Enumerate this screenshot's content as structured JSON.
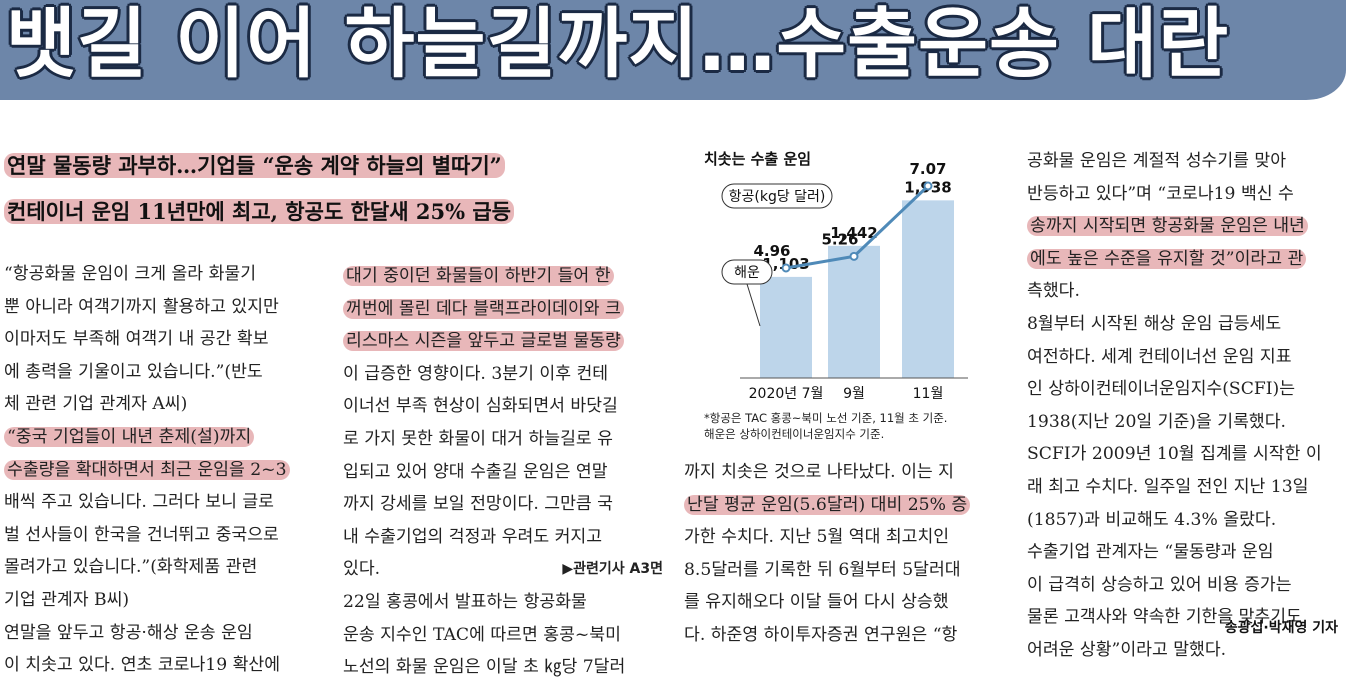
{
  "headline": "뱃길 이어 하늘길까지…수출운송 대란",
  "subheads": [
    "연말 물동량 과부하…기업들 “운송 계약 하늘의 별따기”",
    "컨테이너 운임 11년만에 최고, 항공도 한달새 25% 급등"
  ],
  "col1": [
    "  “항공화물 운임이 크게 올라 화물기",
    "뿐 아니라 여객기까지 활용하고 있지만",
    "이마저도 부족해 여객기 내 공간 확보",
    "에 총력을 기울이고 있습니다.”(반도",
    "체 관련 기업 관계자 A씨)",
    "  “중국 기업들이 내년 춘제(설)까지",
    "수출량을 확대하면서 최근 운임을 2~3",
    "배씩 주고 있습니다. 그러다 보니 글로",
    "벌 선사들이 한국을 건너뛰고 중국으로",
    "몰려가고 있습니다.”(화학제품 관련",
    "기업 관계자 B씨)",
    "  연말을 앞두고 항공·해상 운송 운임",
    "이 치솟고 있다. 연초 코로나19 확산에"
  ],
  "col2": [
    "대기 중이던 화물들이 하반기 들어 한",
    "꺼번에 몰린 데다 블랙프라이데이와 크",
    "리스마스 시즌을 앞두고 글로벌 물동량",
    "이 급증한 영향이다. 3분기 이후 컨테",
    "이너선 부족 현상이 심화되면서 바닷길",
    "로 가지 못한 화물이 대거 하늘길로 유",
    "입되고 있어 양대 수출길 운임은 연말",
    "까지 강세를 보일 전망이다. 그만큼 국",
    "내 수출기업의 걱정과 우려도 커지고",
    "있다.",
    "  22일 홍콩에서 발표하는 항공화물",
    "운송 지수인 TAC에 따르면 홍콩~북미",
    "노선의 화물 운임은 이달 초 ㎏당 7달러"
  ],
  "related": "▶관련기사 A3면",
  "col3": [
    "까지 치솟은 것으로 나타났다. 이는 지",
    "난달 평균 운임(5.6달러) 대비 25% 증",
    "가한 수치다. 지난 5월 역대 최고치인",
    "8.5달러를 기록한 뒤 6월부터 5달러대",
    "를 유지해오다 이달 들어 다시 상승했",
    "다. 하준영 하이투자증권 연구원은 “항"
  ],
  "col4": [
    "공화물 운임은 계절적 성수기를 맞아",
    "반등하고 있다”며 “코로나19 백신 수",
    "송까지 시작되면 항공화물 운임은 내년",
    "에도 높은 수준을 유지할 것”이라고 관",
    "측했다.",
    "  8월부터 시작된 해상 운임 급등세도",
    "여전하다. 세계 컨테이너선 운임 지표",
    "인 상하이컨테이너운임지수(SCFI)는",
    "1938(지난 20일 기준)을 기록했다.",
    "SCFI가 2009년 10월 집계를 시작한 이",
    "래 최고 수치다. 일주일 전인 지난 13일",
    "(1857)과 비교해도 4.3% 올랐다.",
    "  수출기업 관계자는 “물동량과 운임",
    "이 급격히 상승하고 있어 비용 증가는",
    "물론 고객사와 약속한 기한을 맞추기도",
    "어려운 상황”이라고 말했다."
  ],
  "byline": "송광섭·박재영 기자",
  "chart_data": {
    "type": "bar",
    "title": "치솟는 수출 운임",
    "categories": [
      "2020년 7월",
      "9월",
      "11월"
    ],
    "series": [
      {
        "name": "항공(kg당 달러)",
        "type": "line",
        "values": [
          4.96,
          5.26,
          7.07
        ],
        "labels": [
          "4.96",
          "5.26",
          "7.07"
        ]
      },
      {
        "name": "해운",
        "type": "bar",
        "values": [
          1103,
          1442,
          1938
        ],
        "labels": [
          "1,103",
          "1,442",
          "1,938"
        ]
      }
    ],
    "notes": [
      "*항공은 TAC 홍콩~북미 노선 기준, 11월 초 기준.",
      "해운은 상하이컨테이너운임지수 기준."
    ],
    "colors": {
      "bar": "#bdd5ea",
      "line": "#4f8ab8"
    }
  }
}
